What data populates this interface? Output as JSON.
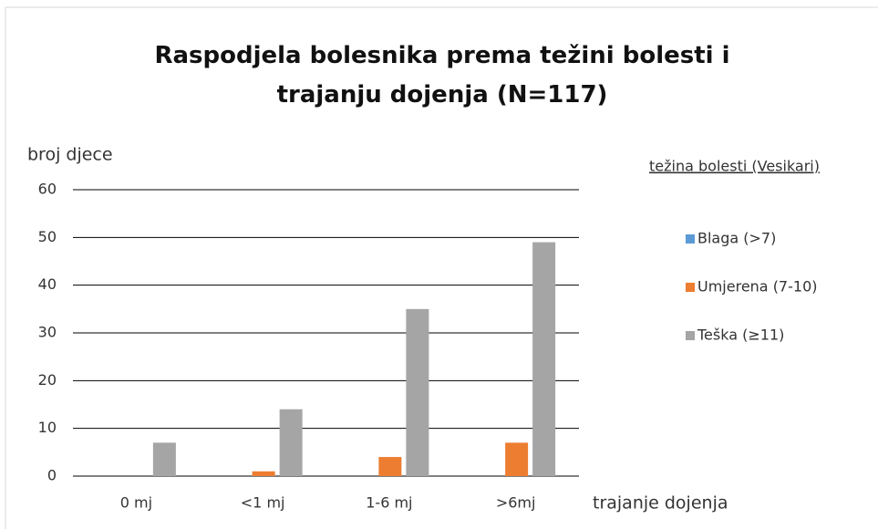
{
  "chart_data": {
    "type": "bar",
    "title": "Raspodjela bolesnika prema težini bolesti i trajanju dojenja (N=117)",
    "y_label": "broj djece",
    "x_label": "trajanje dojenja",
    "legend_title": "težina bolesti (Vesikari)",
    "categories": [
      "0 mj",
      "<1 mj",
      "1-6 mj",
      ">6mj"
    ],
    "series": [
      {
        "name": "Blaga (>7)",
        "color": "#5b9bd5",
        "values": [
          0,
          0,
          0,
          0
        ]
      },
      {
        "name": "Umjerena (7-10)",
        "color": "#ed7d31",
        "values": [
          0,
          1,
          4,
          7
        ]
      },
      {
        "name": "Teška (≥11)",
        "color": "#a5a5a5",
        "values": [
          7,
          14,
          35,
          49
        ]
      }
    ],
    "ylim": [
      0,
      60
    ],
    "yticks": [
      0,
      10,
      20,
      30,
      40,
      50,
      60
    ],
    "grid": true,
    "legend": "right"
  }
}
